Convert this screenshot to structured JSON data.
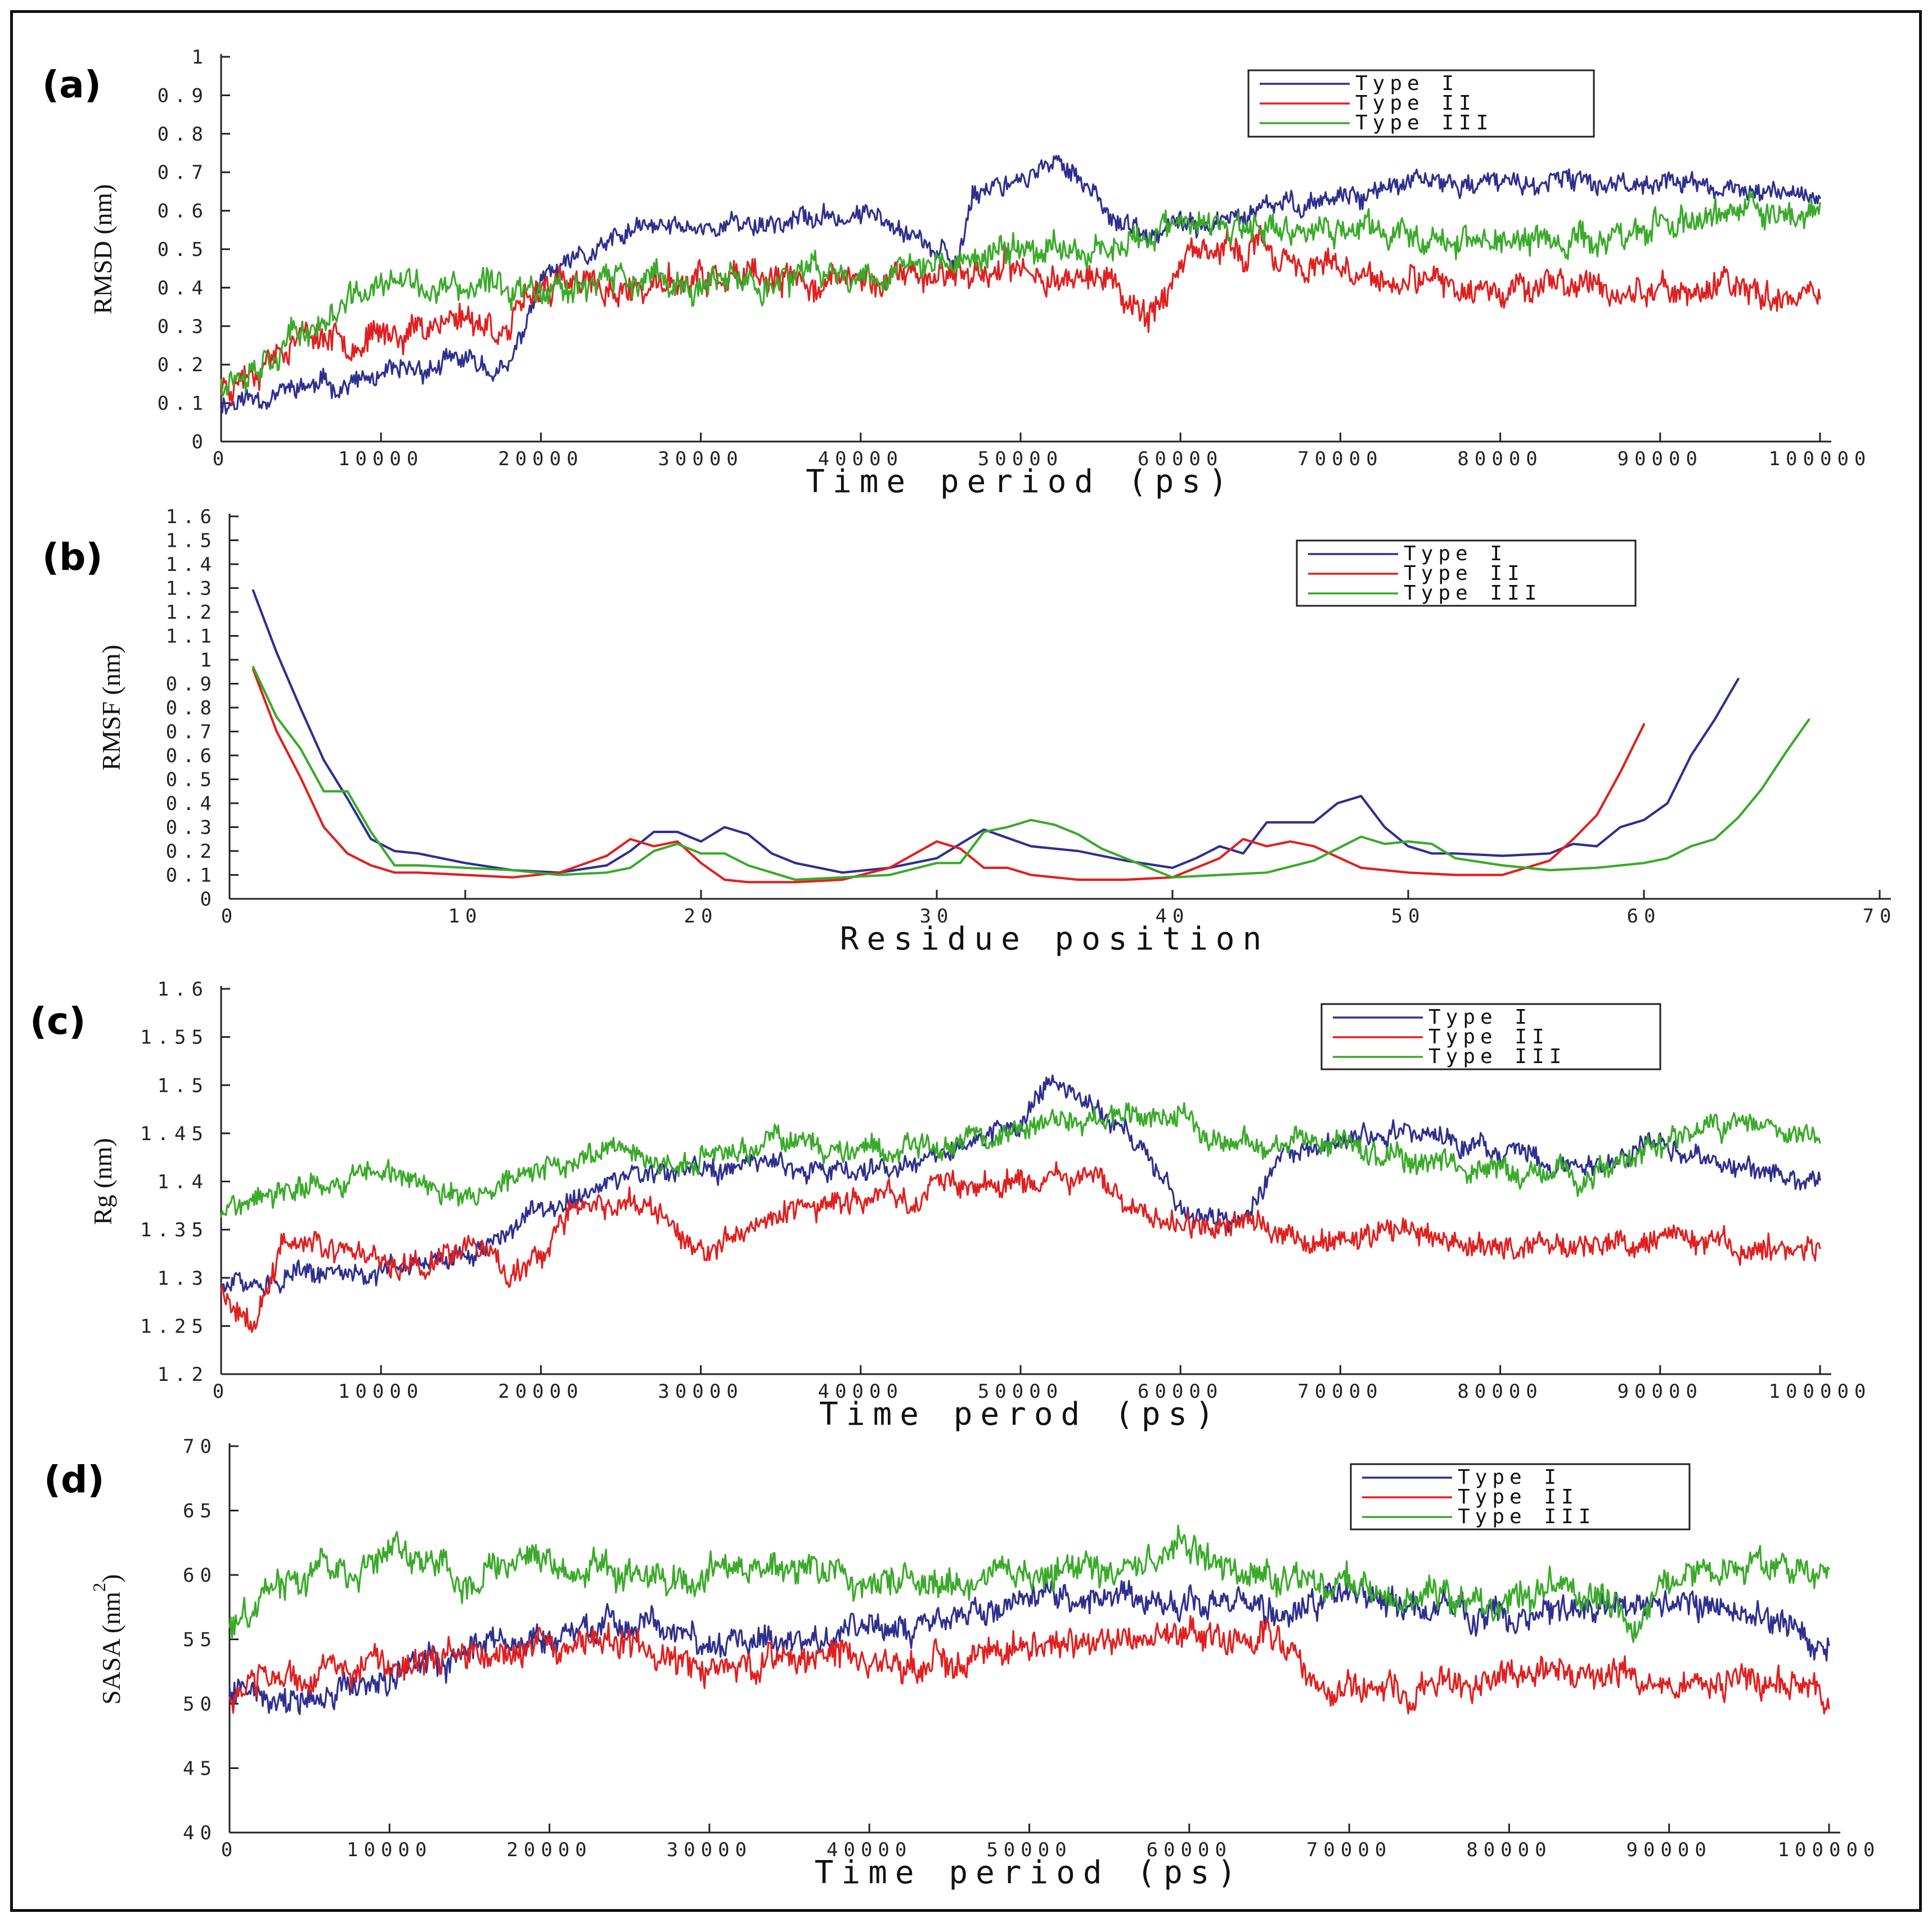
{
  "colors": {
    "type1": "#2f2f8f",
    "type2": "#e02020",
    "type3": "#3aaa2a"
  },
  "chart_data": [
    {
      "id": "a",
      "panel_label": "(a)",
      "type": "line",
      "xlabel": "Time period (ps)",
      "ylabel": "RMSD (nm)",
      "xlim": [
        0,
        100000
      ],
      "ylim": [
        0,
        1
      ],
      "xticks": [
        0,
        10000,
        20000,
        30000,
        40000,
        50000,
        60000,
        70000,
        80000,
        90000,
        100000
      ],
      "xtick_labels": [
        "0",
        "10000",
        "20000",
        "30000",
        "40000",
        "50000",
        "60000",
        "70000",
        "80000",
        "90000",
        "100000"
      ],
      "yticks": [
        0,
        0.1,
        0.2,
        0.3,
        0.4,
        0.5,
        0.6,
        0.7,
        0.8,
        0.9,
        1
      ],
      "ytick_labels": [
        "0",
        "0.1",
        "0.2",
        "0.3",
        "0.4",
        "0.5",
        "0.6",
        "0.7",
        "0.8",
        "0.9",
        "1"
      ],
      "legend": [
        "Type I",
        "Type II",
        "Type III"
      ],
      "legend_position": "top-right",
      "series": [
        {
          "name": "Type I",
          "color_key": "type1",
          "noise": 0.025,
          "seed": 11,
          "x": [
            0,
            5000,
            10000,
            15000,
            18000,
            20000,
            23000,
            26000,
            30000,
            34000,
            38000,
            42000,
            46000,
            47000,
            50000,
            53000,
            56000,
            58000,
            60000,
            63000,
            66000,
            70000,
            75000,
            80000,
            85000,
            90000,
            95000,
            100000
          ],
          "y": [
            0.1,
            0.14,
            0.16,
            0.21,
            0.18,
            0.42,
            0.48,
            0.55,
            0.56,
            0.57,
            0.58,
            0.59,
            0.45,
            0.65,
            0.69,
            0.72,
            0.58,
            0.52,
            0.56,
            0.57,
            0.61,
            0.64,
            0.67,
            0.67,
            0.67,
            0.68,
            0.65,
            0.64
          ]
        },
        {
          "name": "Type II",
          "color_key": "type2",
          "noise": 0.035,
          "seed": 23,
          "x": [
            0,
            5000,
            10000,
            15000,
            18000,
            20000,
            25000,
            30000,
            35000,
            40000,
            45000,
            50000,
            55000,
            58000,
            60000,
            63000,
            65000,
            70000,
            75000,
            80000,
            85000,
            90000,
            95000,
            100000
          ],
          "y": [
            0.14,
            0.28,
            0.27,
            0.33,
            0.29,
            0.41,
            0.39,
            0.42,
            0.41,
            0.42,
            0.44,
            0.44,
            0.43,
            0.33,
            0.45,
            0.5,
            0.5,
            0.43,
            0.4,
            0.41,
            0.4,
            0.39,
            0.4,
            0.39
          ]
        },
        {
          "name": "Type III",
          "color_key": "type3",
          "noise": 0.035,
          "seed": 37,
          "x": [
            0,
            5000,
            10000,
            15000,
            20000,
            25000,
            30000,
            35000,
            40000,
            45000,
            50000,
            55000,
            60000,
            65000,
            70000,
            75000,
            80000,
            85000,
            90000,
            95000,
            100000
          ],
          "y": [
            0.16,
            0.28,
            0.41,
            0.39,
            0.41,
            0.42,
            0.4,
            0.42,
            0.44,
            0.46,
            0.5,
            0.51,
            0.56,
            0.54,
            0.55,
            0.54,
            0.52,
            0.52,
            0.56,
            0.6,
            0.59
          ]
        }
      ]
    },
    {
      "id": "b",
      "panel_label": "(b)",
      "type": "line",
      "xlabel": "Residue position",
      "ylabel": "RMSF (nm)",
      "xlim": [
        0,
        70
      ],
      "ylim": [
        0,
        1.6
      ],
      "xticks": [
        0,
        10,
        20,
        30,
        40,
        50,
        60,
        70
      ],
      "xtick_labels": [
        "0",
        "10",
        "20",
        "30",
        "40",
        "50",
        "60",
        "70"
      ],
      "yticks": [
        0,
        0.1,
        0.2,
        0.3,
        0.4,
        0.5,
        0.6,
        0.7,
        0.8,
        0.9,
        1,
        1.1,
        1.2,
        1.3,
        1.4,
        1.5,
        1.6
      ],
      "ytick_labels": [
        "0",
        "0.1",
        "0.2",
        "0.3",
        "0.4",
        "0.5",
        "0.6",
        "0.7",
        "0.8",
        "0.9",
        "1",
        "1.1",
        "1.2",
        "1.3",
        "1.4",
        "1.5",
        "1.6"
      ],
      "legend": [
        "Type I",
        "Type II",
        "Type III"
      ],
      "legend_position": "top-right",
      "series": [
        {
          "name": "Type I",
          "color_key": "type1",
          "noise": 0,
          "seed": 0,
          "x": [
            1,
            2,
            3,
            4,
            5,
            6,
            7,
            8,
            10,
            12,
            14,
            16,
            17,
            18,
            19,
            20,
            21,
            22,
            23,
            24,
            26,
            28,
            30,
            32,
            34,
            36,
            38,
            40,
            41,
            42,
            43,
            44,
            46,
            47,
            48,
            49,
            50,
            51,
            52,
            54,
            56,
            57,
            58,
            59,
            60,
            61,
            62,
            63,
            64
          ],
          "y": [
            1.29,
            1.03,
            0.8,
            0.58,
            0.42,
            0.25,
            0.2,
            0.19,
            0.15,
            0.12,
            0.11,
            0.14,
            0.2,
            0.28,
            0.28,
            0.24,
            0.3,
            0.27,
            0.19,
            0.15,
            0.11,
            0.13,
            0.17,
            0.29,
            0.22,
            0.2,
            0.16,
            0.13,
            0.17,
            0.22,
            0.19,
            0.32,
            0.32,
            0.4,
            0.43,
            0.3,
            0.22,
            0.19,
            0.19,
            0.18,
            0.19,
            0.23,
            0.22,
            0.3,
            0.33,
            0.4,
            0.6,
            0.75,
            0.92
          ]
        },
        {
          "name": "Type II",
          "color_key": "type2",
          "noise": 0,
          "seed": 0,
          "x": [
            1,
            2,
            3,
            4,
            5,
            6,
            7,
            8,
            10,
            12,
            14,
            16,
            17,
            18,
            19,
            20,
            21,
            22,
            24,
            26,
            28,
            30,
            31,
            32,
            33,
            34,
            36,
            38,
            40,
            42,
            43,
            44,
            45,
            46,
            48,
            50,
            52,
            54,
            56,
            57,
            58,
            59,
            60
          ],
          "y": [
            0.96,
            0.7,
            0.51,
            0.3,
            0.19,
            0.14,
            0.11,
            0.11,
            0.1,
            0.09,
            0.11,
            0.18,
            0.25,
            0.22,
            0.24,
            0.15,
            0.08,
            0.07,
            0.07,
            0.08,
            0.13,
            0.24,
            0.21,
            0.13,
            0.13,
            0.1,
            0.08,
            0.08,
            0.09,
            0.17,
            0.25,
            0.22,
            0.24,
            0.22,
            0.13,
            0.11,
            0.1,
            0.1,
            0.16,
            0.25,
            0.35,
            0.53,
            0.73
          ]
        },
        {
          "name": "Type III",
          "color_key": "type3",
          "noise": 0,
          "seed": 0,
          "x": [
            1,
            2,
            3,
            4,
            5,
            6,
            7,
            8,
            10,
            12,
            14,
            16,
            17,
            18,
            19,
            20,
            21,
            22,
            24,
            26,
            28,
            30,
            31,
            32,
            33,
            34,
            35,
            36,
            37,
            38,
            40,
            42,
            44,
            46,
            48,
            49,
            50,
            51,
            52,
            54,
            56,
            58,
            60,
            61,
            62,
            63,
            64,
            65,
            66,
            67
          ],
          "y": [
            0.97,
            0.76,
            0.63,
            0.45,
            0.45,
            0.28,
            0.14,
            0.14,
            0.13,
            0.12,
            0.1,
            0.11,
            0.13,
            0.2,
            0.23,
            0.19,
            0.19,
            0.14,
            0.08,
            0.09,
            0.1,
            0.15,
            0.15,
            0.28,
            0.3,
            0.33,
            0.31,
            0.27,
            0.21,
            0.17,
            0.09,
            0.1,
            0.11,
            0.16,
            0.26,
            0.23,
            0.24,
            0.23,
            0.17,
            0.14,
            0.12,
            0.13,
            0.15,
            0.17,
            0.22,
            0.25,
            0.34,
            0.46,
            0.61,
            0.75
          ]
        }
      ]
    },
    {
      "id": "c",
      "panel_label": "(c)",
      "type": "line",
      "xlabel": "Time perod (ps)",
      "ylabel": "Rg (nm)",
      "xlim": [
        0,
        100000
      ],
      "ylim": [
        1.2,
        1.6
      ],
      "xticks": [
        0,
        10000,
        20000,
        30000,
        40000,
        50000,
        60000,
        70000,
        80000,
        90000,
        100000
      ],
      "xtick_labels": [
        "0",
        "10000",
        "20000",
        "30000",
        "40000",
        "50000",
        "60000",
        "70000",
        "80000",
        "90000",
        "100000"
      ],
      "yticks": [
        1.2,
        1.25,
        1.3,
        1.35,
        1.4,
        1.45,
        1.5,
        1.55,
        1.6
      ],
      "ytick_labels": [
        "1.2",
        "1.25",
        "1.3",
        "1.35",
        "1.4",
        "1.45",
        "1.5",
        "1.55",
        "1.6"
      ],
      "legend": [
        "Type I",
        "Type II",
        "Type III"
      ],
      "legend_position": "top-right",
      "series": [
        {
          "name": "Type I",
          "color_key": "type1",
          "noise": 0.01,
          "seed": 51,
          "x": [
            0,
            5000,
            10000,
            15000,
            20000,
            25000,
            30000,
            35000,
            40000,
            45000,
            50000,
            52000,
            55000,
            58000,
            60000,
            64000,
            66000,
            70000,
            75000,
            80000,
            85000,
            90000,
            95000,
            100000
          ],
          "y": [
            1.29,
            1.3,
            1.31,
            1.32,
            1.37,
            1.4,
            1.41,
            1.42,
            1.41,
            1.43,
            1.46,
            1.51,
            1.47,
            1.43,
            1.37,
            1.36,
            1.42,
            1.44,
            1.45,
            1.43,
            1.41,
            1.44,
            1.41,
            1.4
          ]
        },
        {
          "name": "Type II",
          "color_key": "type2",
          "noise": 0.012,
          "seed": 63,
          "x": [
            0,
            2000,
            4000,
            8000,
            12000,
            16000,
            18000,
            22000,
            26000,
            30000,
            35000,
            40000,
            45000,
            50000,
            55000,
            58000,
            60000,
            62000,
            65000,
            68000,
            72000,
            80000,
            90000,
            100000
          ],
          "y": [
            1.28,
            1.26,
            1.34,
            1.33,
            1.32,
            1.34,
            1.3,
            1.37,
            1.38,
            1.32,
            1.37,
            1.38,
            1.39,
            1.4,
            1.4,
            1.37,
            1.36,
            1.35,
            1.37,
            1.33,
            1.35,
            1.33,
            1.34,
            1.33
          ]
        },
        {
          "name": "Type III",
          "color_key": "type3",
          "noise": 0.011,
          "seed": 77,
          "x": [
            0,
            5000,
            10000,
            15000,
            20000,
            25000,
            30000,
            35000,
            40000,
            45000,
            50000,
            55000,
            60000,
            62000,
            65000,
            70000,
            75000,
            80000,
            85000,
            90000,
            95000,
            100000
          ],
          "y": [
            1.37,
            1.39,
            1.41,
            1.38,
            1.41,
            1.43,
            1.42,
            1.44,
            1.43,
            1.44,
            1.46,
            1.46,
            1.47,
            1.44,
            1.44,
            1.44,
            1.42,
            1.41,
            1.4,
            1.44,
            1.46,
            1.45
          ]
        }
      ]
    },
    {
      "id": "d",
      "panel_label": "(d)",
      "type": "line",
      "xlabel": "Time period (ps)",
      "ylabel": "SASA (nm",
      "ylabel_sup": "2",
      "ylabel_close": ")",
      "xlim": [
        0,
        100000
      ],
      "ylim": [
        40,
        70
      ],
      "xticks": [
        0,
        10000,
        20000,
        30000,
        40000,
        50000,
        60000,
        70000,
        80000,
        90000,
        100000
      ],
      "xtick_labels": [
        "0",
        "10000",
        "20000",
        "30000",
        "40000",
        "50000",
        "60000",
        "70000",
        "80000",
        "90000",
        "100000"
      ],
      "yticks": [
        40,
        45,
        50,
        55,
        60,
        65,
        70
      ],
      "ytick_labels": [
        "40",
        "45",
        "50",
        "55",
        "60",
        "65",
        "70"
      ],
      "legend": [
        "Type I",
        "Type II",
        "Type III"
      ],
      "legend_position": "top-right",
      "series": [
        {
          "name": "Type I",
          "color_key": "type1",
          "noise": 1.0,
          "seed": 91,
          "x": [
            0,
            5000,
            10000,
            15000,
            20000,
            25000,
            30000,
            35000,
            40000,
            45000,
            50000,
            55000,
            60000,
            65000,
            70000,
            75000,
            80000,
            85000,
            90000,
            95000,
            100000
          ],
          "y": [
            51.5,
            50.5,
            52.5,
            54.0,
            55.5,
            56.5,
            54.5,
            55.0,
            56.0,
            56.5,
            58.0,
            58.5,
            58.0,
            57.0,
            58.5,
            57.5,
            57.0,
            57.5,
            57.5,
            57.0,
            54.0
          ]
        },
        {
          "name": "Type II",
          "color_key": "type2",
          "noise": 1.1,
          "seed": 103,
          "x": [
            0,
            3000,
            8000,
            15000,
            20000,
            25000,
            30000,
            35000,
            40000,
            45000,
            50000,
            55000,
            60000,
            65000,
            68000,
            72000,
            80000,
            85000,
            90000,
            95000,
            100000
          ],
          "y": [
            50.5,
            51.5,
            53.0,
            53.5,
            54.5,
            54.5,
            52.5,
            53.5,
            53.0,
            53.0,
            55.0,
            55.0,
            55.5,
            55.5,
            51.5,
            51.0,
            51.5,
            52.5,
            51.5,
            52.0,
            51.0
          ]
        },
        {
          "name": "Type III",
          "color_key": "type3",
          "noise": 1.1,
          "seed": 117,
          "x": [
            0,
            3000,
            8000,
            10000,
            15000,
            20000,
            25000,
            30000,
            35000,
            40000,
            45000,
            50000,
            55000,
            60000,
            65000,
            70000,
            75000,
            80000,
            85000,
            88000,
            90000,
            95000,
            100000
          ],
          "y": [
            55.5,
            59.5,
            60.5,
            61.5,
            60.0,
            61.0,
            60.0,
            60.5,
            61.0,
            59.5,
            59.0,
            60.0,
            60.5,
            62.0,
            59.5,
            59.0,
            58.5,
            58.5,
            58.5,
            56.0,
            60.0,
            60.5,
            61.0
          ]
        }
      ]
    }
  ]
}
